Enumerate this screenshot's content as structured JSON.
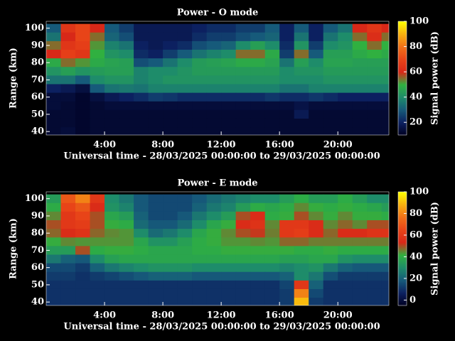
{
  "chart_data": [
    {
      "type": "heatmap",
      "title": "Power - O mode",
      "xlabel": "Universal time - 28/03/2025 00:00:00 to 29/03/2025 00:00:00",
      "ylabel": "Range (km)",
      "colorbar_label": "Signal power (dB)",
      "xlim": [
        0,
        23.5
      ],
      "ylim": [
        38,
        104
      ],
      "xticks": [
        {
          "value": 4,
          "label": "4:00"
        },
        {
          "value": 8,
          "label": "8:00"
        },
        {
          "value": 12,
          "label": "12:00"
        },
        {
          "value": 16,
          "label": "16:00"
        },
        {
          "value": 20,
          "label": "20:00"
        }
      ],
      "yticks": [
        40,
        50,
        60,
        70,
        80,
        90,
        100
      ],
      "zlim": [
        10,
        100
      ],
      "zticks": [
        20,
        40,
        60,
        80,
        100
      ],
      "colormap": [
        "#000020",
        "#0c2060",
        "#165a7a",
        "#1e8c6a",
        "#30b040",
        "#d82818",
        "#e84418",
        "#f07018",
        "#f8b010",
        "#ffff00"
      ],
      "x": [
        0.5,
        1.5,
        2.5,
        3.5,
        4.5,
        5.5,
        6.5,
        7.5,
        8.5,
        9.5,
        10.5,
        11.5,
        12.5,
        13.5,
        14.5,
        15.5,
        16.5,
        17.5,
        18.5,
        19.5,
        20.5,
        21.5,
        22.5,
        23.5
      ],
      "y": [
        100,
        95,
        90,
        85,
        80,
        75,
        70,
        65,
        60,
        55,
        50,
        45,
        40
      ],
      "values": [
        [
          30,
          65,
          70,
          60,
          30,
          25,
          18,
          18,
          18,
          18,
          20,
          22,
          22,
          25,
          25,
          30,
          20,
          30,
          20,
          30,
          35,
          60,
          65,
          60
        ],
        [
          35,
          60,
          70,
          55,
          32,
          28,
          18,
          18,
          18,
          18,
          22,
          25,
          25,
          28,
          30,
          32,
          20,
          35,
          20,
          35,
          40,
          55,
          62,
          55
        ],
        [
          55,
          65,
          68,
          52,
          38,
          35,
          20,
          18,
          20,
          22,
          28,
          30,
          32,
          40,
          45,
          40,
          22,
          42,
          25,
          40,
          42,
          50,
          55,
          50
        ],
        [
          60,
          68,
          65,
          50,
          42,
          40,
          22,
          20,
          25,
          30,
          35,
          38,
          40,
          55,
          55,
          48,
          25,
          55,
          30,
          45,
          45,
          48,
          50,
          48
        ],
        [
          48,
          55,
          52,
          48,
          46,
          45,
          28,
          30,
          35,
          40,
          44,
          45,
          46,
          48,
          48,
          46,
          35,
          45,
          40,
          46,
          46,
          45,
          45,
          45
        ],
        [
          42,
          45,
          42,
          44,
          45,
          45,
          38,
          40,
          40,
          42,
          44,
          44,
          44,
          44,
          44,
          44,
          40,
          42,
          42,
          44,
          44,
          44,
          44,
          44
        ],
        [
          35,
          35,
          30,
          40,
          42,
          42,
          38,
          40,
          42,
          42,
          42,
          42,
          42,
          42,
          42,
          42,
          40,
          40,
          40,
          42,
          42,
          42,
          42,
          42
        ],
        [
          20,
          18,
          15,
          30,
          35,
          36,
          35,
          38,
          38,
          38,
          38,
          38,
          38,
          38,
          38,
          38,
          35,
          35,
          38,
          38,
          38,
          38,
          38,
          38
        ],
        [
          14,
          14,
          12,
          15,
          18,
          20,
          22,
          25,
          24,
          22,
          22,
          22,
          22,
          22,
          22,
          24,
          22,
          22,
          24,
          22,
          20,
          20,
          20,
          20
        ],
        [
          14,
          13,
          12,
          13,
          14,
          14,
          14,
          14,
          14,
          14,
          14,
          14,
          14,
          14,
          14,
          14,
          14,
          16,
          14,
          14,
          14,
          14,
          14,
          14
        ],
        [
          13,
          13,
          12,
          13,
          13,
          13,
          13,
          13,
          13,
          13,
          13,
          13,
          13,
          13,
          13,
          13,
          13,
          18,
          13,
          13,
          13,
          13,
          13,
          13
        ],
        [
          13,
          13,
          12,
          13,
          13,
          13,
          13,
          13,
          13,
          13,
          13,
          13,
          13,
          13,
          13,
          13,
          13,
          13,
          13,
          13,
          13,
          13,
          13,
          13
        ],
        [
          13,
          14,
          12,
          13,
          13,
          13,
          13,
          13,
          13,
          13,
          13,
          13,
          13,
          13,
          13,
          13,
          13,
          13,
          13,
          13,
          13,
          13,
          13,
          13
        ]
      ]
    },
    {
      "type": "heatmap",
      "title": "Power - E mode",
      "xlabel": "Universal time - 28/03/2025 00:00:00 to 29/03/2025 00:00:00",
      "ylabel": "Range (km)",
      "colorbar_label": "Signal power (dB)",
      "xlim": [
        0,
        23.5
      ],
      "ylim": [
        38,
        104
      ],
      "xticks": [
        {
          "value": 4,
          "label": "4:00"
        },
        {
          "value": 8,
          "label": "8:00"
        },
        {
          "value": 12,
          "label": "12:00"
        },
        {
          "value": 16,
          "label": "16:00"
        },
        {
          "value": 20,
          "label": "20:00"
        }
      ],
      "yticks": [
        40,
        50,
        60,
        70,
        80,
        90,
        100
      ],
      "zlim": [
        -5,
        100
      ],
      "zticks": [
        0,
        20,
        40,
        60,
        80,
        100
      ],
      "colormap": [
        "#000020",
        "#0c2060",
        "#165a7a",
        "#1e8c6a",
        "#30b040",
        "#d82818",
        "#e84418",
        "#f07018",
        "#f8b010",
        "#ffff00"
      ],
      "x": [
        0.5,
        1.5,
        2.5,
        3.5,
        4.5,
        5.5,
        6.5,
        7.5,
        8.5,
        9.5,
        10.5,
        11.5,
        12.5,
        13.5,
        14.5,
        15.5,
        16.5,
        17.5,
        18.5,
        19.5,
        20.5,
        21.5,
        22.5,
        23.5
      ],
      "y": [
        100,
        95,
        90,
        85,
        80,
        75,
        70,
        65,
        60,
        55,
        50,
        45,
        40
      ],
      "values": [
        [
          35,
          70,
          80,
          60,
          30,
          25,
          18,
          15,
          15,
          15,
          18,
          22,
          25,
          28,
          30,
          30,
          35,
          40,
          35,
          35,
          40,
          35,
          30,
          30
        ],
        [
          40,
          65,
          70,
          55,
          32,
          28,
          18,
          15,
          15,
          15,
          20,
          25,
          28,
          35,
          40,
          38,
          40,
          45,
          42,
          40,
          42,
          40,
          38,
          35
        ],
        [
          45,
          60,
          65,
          50,
          38,
          35,
          20,
          15,
          15,
          18,
          25,
          30,
          35,
          50,
          55,
          40,
          42,
          50,
          45,
          42,
          45,
          42,
          42,
          40
        ],
        [
          50,
          60,
          62,
          50,
          42,
          40,
          22,
          18,
          18,
          22,
          30,
          38,
          42,
          55,
          58,
          45,
          60,
          60,
          55,
          45,
          48,
          45,
          50,
          50
        ],
        [
          48,
          55,
          58,
          48,
          45,
          44,
          30,
          22,
          25,
          30,
          38,
          42,
          45,
          50,
          52,
          46,
          60,
          62,
          55,
          48,
          55,
          55,
          58,
          58
        ],
        [
          42,
          45,
          44,
          44,
          44,
          44,
          38,
          32,
          32,
          36,
          40,
          42,
          44,
          44,
          45,
          44,
          48,
          48,
          46,
          46,
          46,
          46,
          46,
          46
        ],
        [
          35,
          35,
          50,
          40,
          42,
          42,
          40,
          38,
          38,
          38,
          40,
          40,
          42,
          42,
          42,
          42,
          42,
          40,
          40,
          42,
          40,
          40,
          40,
          40
        ],
        [
          25,
          20,
          18,
          30,
          36,
          38,
          38,
          38,
          38,
          38,
          38,
          38,
          38,
          38,
          38,
          38,
          36,
          36,
          38,
          38,
          32,
          30,
          30,
          30
        ],
        [
          15,
          15,
          12,
          20,
          25,
          28,
          30,
          32,
          32,
          32,
          30,
          30,
          30,
          30,
          30,
          30,
          28,
          30,
          32,
          25,
          20,
          18,
          18,
          18
        ],
        [
          12,
          12,
          10,
          12,
          14,
          16,
          18,
          20,
          20,
          20,
          18,
          18,
          18,
          18,
          18,
          18,
          20,
          30,
          25,
          16,
          12,
          12,
          12,
          12
        ],
        [
          10,
          10,
          10,
          10,
          10,
          10,
          10,
          10,
          10,
          10,
          10,
          10,
          10,
          10,
          10,
          10,
          14,
          60,
          20,
          10,
          10,
          10,
          10,
          10
        ],
        [
          10,
          10,
          10,
          10,
          10,
          10,
          10,
          10,
          10,
          10,
          10,
          10,
          10,
          10,
          10,
          10,
          12,
          80,
          15,
          10,
          10,
          10,
          10,
          10
        ],
        [
          10,
          10,
          10,
          10,
          10,
          10,
          10,
          10,
          10,
          10,
          10,
          10,
          10,
          10,
          10,
          10,
          12,
          90,
          12,
          10,
          10,
          10,
          10,
          10
        ]
      ]
    }
  ]
}
